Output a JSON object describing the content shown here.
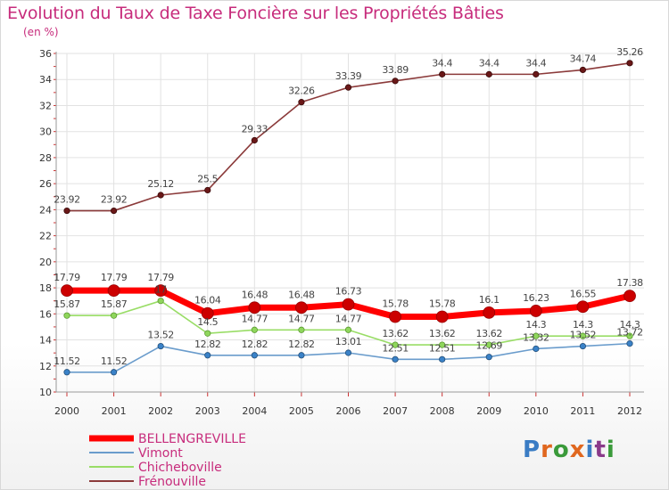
{
  "title": "Evolution du Taux de Taxe Foncière sur les Propriétés Bâties",
  "unit_label": "(en %)",
  "logo_text": "Proxiti",
  "chart_data": {
    "type": "line",
    "title": "Evolution du Taux de Taxe Foncière sur les Propriétés Bâties",
    "ylabel": "(en %)",
    "xlabel": "",
    "ylim": [
      10,
      36
    ],
    "yticks": [
      10,
      12,
      14,
      16,
      18,
      20,
      22,
      24,
      26,
      28,
      30,
      32,
      34,
      36
    ],
    "grid": true,
    "legend_position": "bottom-left",
    "categories": [
      "2000",
      "2001",
      "2002",
      "2003",
      "2004",
      "2005",
      "2006",
      "2007",
      "2008",
      "2009",
      "2010",
      "2011",
      "2012"
    ],
    "series": [
      {
        "name": "BELLENGREVILLE",
        "color": "#ff0000",
        "values": [
          17.79,
          17.79,
          17.79,
          16.04,
          16.48,
          16.48,
          16.73,
          15.78,
          15.78,
          16.1,
          16.23,
          16.55,
          17.38
        ],
        "labels": [
          "17.79",
          "17.79",
          "17.79",
          "16.04",
          "16.48",
          "16.48",
          "16.73",
          "15.78",
          "15.78",
          "16.1",
          "16.23",
          "16.55",
          "17.38"
        ]
      },
      {
        "name": "Vimont",
        "color": "#6a9ccc",
        "values": [
          11.52,
          11.52,
          13.52,
          12.82,
          12.82,
          12.82,
          13.01,
          12.51,
          12.51,
          12.69,
          13.32,
          13.52,
          13.72
        ],
        "labels": [
          "11.52",
          "11.52",
          "13.52",
          "12.82",
          "12.82",
          "12.82",
          "13.01",
          "12.51",
          "12.51",
          "12.69",
          "13.32",
          "13.52",
          "13.72"
        ]
      },
      {
        "name": "Chicheboville",
        "color": "#99dd66",
        "values": [
          15.87,
          15.87,
          17.0,
          14.5,
          14.77,
          14.77,
          14.77,
          13.62,
          13.62,
          13.62,
          14.3,
          14.3,
          14.3
        ],
        "labels": [
          "15.87",
          "15.87",
          "17",
          "14.5",
          "14.77",
          "14.77",
          "14.77",
          "13.62",
          "13.62",
          "13.62",
          "14.3",
          "14.3",
          "14.3"
        ]
      },
      {
        "name": "Frénouville",
        "color": "#8b3a3a",
        "values": [
          23.92,
          23.92,
          25.12,
          25.5,
          29.33,
          32.26,
          33.39,
          33.89,
          34.4,
          34.4,
          34.4,
          34.74,
          35.26
        ],
        "labels": [
          "23.92",
          "23.92",
          "25.12",
          "25.5",
          "29.33",
          "32.26",
          "33.39",
          "33.89",
          "34.4",
          "34.4",
          "34.4",
          "34.74",
          "35.26"
        ]
      }
    ]
  }
}
